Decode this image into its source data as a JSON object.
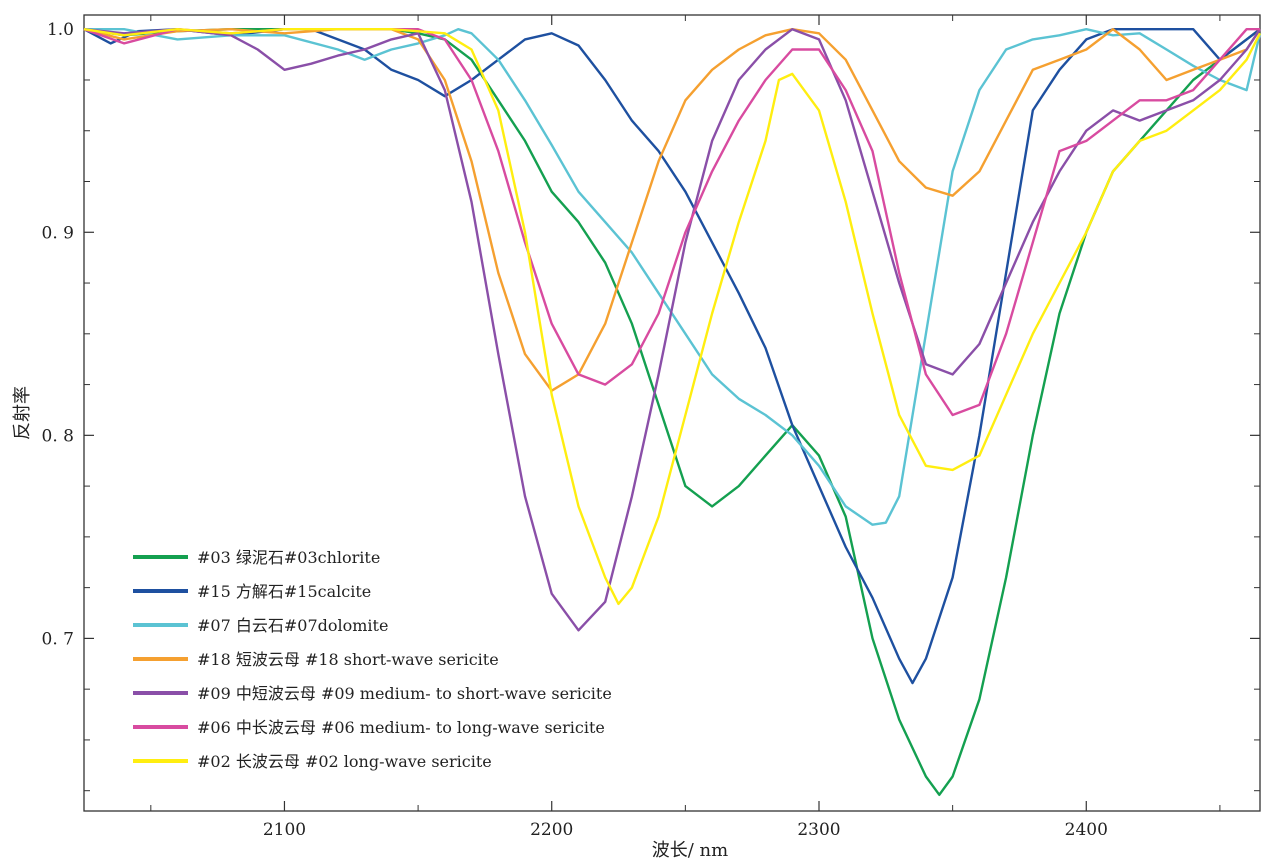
{
  "chart_data": {
    "type": "line",
    "xlabel": "波长/ nm",
    "ylabel": "反射率",
    "xlim": [
      2025,
      2465
    ],
    "ylim": [
      0.615,
      1.007
    ],
    "x_ticks": [
      {
        "value": 2100,
        "label": "2100"
      },
      {
        "value": 2200,
        "label": "2200"
      },
      {
        "value": 2300,
        "label": "2300"
      },
      {
        "value": 2400,
        "label": "2400"
      }
    ],
    "y_ticks": [
      {
        "value": 1.0,
        "label": "1.0"
      },
      {
        "value": 0.9,
        "label": "0. 9"
      },
      {
        "value": 0.8,
        "label": "0. 8"
      },
      {
        "value": 0.7,
        "label": "0. 7"
      }
    ],
    "legend_position": "bottom-left",
    "grid": false,
    "series": [
      {
        "name": "#03 绿泥石#03chlorite",
        "color": "#14a050",
        "x": [
          2025,
          2040,
          2060,
          2080,
          2100,
          2120,
          2140,
          2150,
          2160,
          2170,
          2180,
          2190,
          2200,
          2210,
          2220,
          2230,
          2240,
          2250,
          2260,
          2270,
          2280,
          2290,
          2300,
          2310,
          2320,
          2330,
          2340,
          2345,
          2350,
          2360,
          2370,
          2380,
          2390,
          2400,
          2410,
          2420,
          2430,
          2440,
          2450,
          2460,
          2465
        ],
        "y": [
          1.0,
          0.997,
          0.999,
          1.0,
          1.0,
          1.0,
          1.0,
          0.998,
          0.995,
          0.985,
          0.965,
          0.945,
          0.92,
          0.905,
          0.885,
          0.855,
          0.815,
          0.775,
          0.765,
          0.775,
          0.79,
          0.805,
          0.79,
          0.76,
          0.7,
          0.66,
          0.632,
          0.623,
          0.632,
          0.67,
          0.73,
          0.8,
          0.86,
          0.9,
          0.93,
          0.945,
          0.96,
          0.975,
          0.985,
          0.995,
          1.0
        ]
      },
      {
        "name": "#15 方解石#15calcite",
        "color": "#1e50a0",
        "x": [
          2025,
          2035,
          2045,
          2060,
          2080,
          2100,
          2110,
          2120,
          2130,
          2140,
          2150,
          2160,
          2170,
          2180,
          2190,
          2200,
          2210,
          2220,
          2230,
          2240,
          2250,
          2260,
          2270,
          2280,
          2290,
          2300,
          2310,
          2320,
          2330,
          2335,
          2340,
          2350,
          2360,
          2370,
          2380,
          2390,
          2400,
          2410,
          2420,
          2430,
          2435,
          2440,
          2450,
          2460,
          2465
        ],
        "y": [
          1.0,
          0.993,
          0.999,
          1.0,
          0.997,
          1.0,
          1.0,
          0.995,
          0.99,
          0.98,
          0.975,
          0.967,
          0.975,
          0.985,
          0.995,
          0.998,
          0.992,
          0.975,
          0.955,
          0.94,
          0.92,
          0.895,
          0.87,
          0.843,
          0.805,
          0.775,
          0.745,
          0.72,
          0.69,
          0.678,
          0.69,
          0.73,
          0.8,
          0.88,
          0.96,
          0.98,
          0.995,
          1.0,
          1.0,
          1.0,
          1.0,
          1.0,
          0.985,
          0.995,
          1.0
        ]
      },
      {
        "name": "#07 白云石#07dolomite",
        "color": "#5bc3d3",
        "x": [
          2025,
          2040,
          2060,
          2080,
          2100,
          2120,
          2130,
          2140,
          2150,
          2160,
          2165,
          2170,
          2180,
          2190,
          2200,
          2210,
          2220,
          2230,
          2240,
          2250,
          2260,
          2270,
          2280,
          2290,
          2300,
          2310,
          2320,
          2325,
          2330,
          2340,
          2350,
          2360,
          2370,
          2380,
          2390,
          2400,
          2410,
          2420,
          2430,
          2440,
          2450,
          2460,
          2465
        ],
        "y": [
          1.0,
          1.0,
          0.995,
          0.997,
          0.997,
          0.99,
          0.985,
          0.99,
          0.993,
          0.997,
          1.0,
          0.998,
          0.985,
          0.965,
          0.943,
          0.92,
          0.905,
          0.89,
          0.87,
          0.85,
          0.83,
          0.818,
          0.81,
          0.8,
          0.785,
          0.765,
          0.756,
          0.757,
          0.77,
          0.85,
          0.93,
          0.97,
          0.99,
          0.995,
          0.997,
          1.0,
          0.997,
          0.998,
          0.99,
          0.982,
          0.975,
          0.97,
          0.998
        ]
      },
      {
        "name": "#18 短波云母 #18 short-wave sericite",
        "color": "#f5a030",
        "x": [
          2025,
          2040,
          2060,
          2080,
          2100,
          2120,
          2140,
          2150,
          2160,
          2170,
          2180,
          2190,
          2200,
          2210,
          2220,
          2230,
          2240,
          2250,
          2260,
          2270,
          2280,
          2290,
          2300,
          2310,
          2320,
          2330,
          2340,
          2350,
          2360,
          2370,
          2380,
          2390,
          2400,
          2410,
          2420,
          2430,
          2440,
          2450,
          2460,
          2465
        ],
        "y": [
          1.0,
          0.995,
          0.999,
          1.0,
          0.998,
          1.0,
          1.0,
          0.995,
          0.975,
          0.935,
          0.88,
          0.84,
          0.822,
          0.83,
          0.855,
          0.895,
          0.935,
          0.965,
          0.98,
          0.99,
          0.997,
          1.0,
          0.998,
          0.985,
          0.96,
          0.935,
          0.922,
          0.918,
          0.93,
          0.955,
          0.98,
          0.985,
          0.99,
          1.0,
          0.99,
          0.975,
          0.98,
          0.985,
          0.99,
          1.0
        ]
      },
      {
        "name": "#09 中短波云母 #09  medium- to short-wave sericite",
        "color": "#8a4fa8",
        "x": [
          2025,
          2040,
          2060,
          2080,
          2090,
          2100,
          2110,
          2120,
          2130,
          2140,
          2150,
          2160,
          2170,
          2180,
          2190,
          2200,
          2210,
          2220,
          2230,
          2240,
          2250,
          2260,
          2270,
          2280,
          2290,
          2300,
          2310,
          2320,
          2330,
          2340,
          2350,
          2360,
          2370,
          2380,
          2390,
          2400,
          2410,
          2420,
          2430,
          2440,
          2450,
          2460,
          2465
        ],
        "y": [
          1.0,
          0.998,
          1.0,
          0.997,
          0.99,
          0.98,
          0.983,
          0.987,
          0.99,
          0.995,
          0.998,
          0.97,
          0.915,
          0.84,
          0.77,
          0.722,
          0.704,
          0.718,
          0.77,
          0.83,
          0.895,
          0.945,
          0.975,
          0.99,
          1.0,
          0.995,
          0.965,
          0.92,
          0.875,
          0.835,
          0.83,
          0.845,
          0.875,
          0.905,
          0.93,
          0.95,
          0.96,
          0.955,
          0.96,
          0.965,
          0.975,
          0.99,
          1.0
        ]
      },
      {
        "name": "#06 中长波云母 #06  medium- to long-wave sericite",
        "color": "#d84ba0",
        "x": [
          2025,
          2040,
          2060,
          2080,
          2100,
          2120,
          2140,
          2150,
          2160,
          2170,
          2180,
          2190,
          2200,
          2210,
          2220,
          2230,
          2240,
          2250,
          2260,
          2270,
          2280,
          2290,
          2300,
          2310,
          2320,
          2330,
          2340,
          2350,
          2360,
          2370,
          2380,
          2390,
          2400,
          2410,
          2420,
          2430,
          2440,
          2450,
          2460,
          2465
        ],
        "y": [
          1.0,
          0.993,
          1.0,
          0.998,
          1.0,
          1.0,
          1.0,
          1.0,
          0.995,
          0.975,
          0.94,
          0.895,
          0.855,
          0.83,
          0.825,
          0.835,
          0.86,
          0.9,
          0.93,
          0.955,
          0.975,
          0.99,
          0.99,
          0.97,
          0.94,
          0.88,
          0.83,
          0.81,
          0.815,
          0.85,
          0.895,
          0.94,
          0.945,
          0.955,
          0.965,
          0.965,
          0.97,
          0.985,
          1.0,
          1.0
        ]
      },
      {
        "name": "#02 长波云母 #02 long-wave sericite",
        "color": "#ffee10",
        "x": [
          2025,
          2040,
          2060,
          2080,
          2100,
          2120,
          2140,
          2160,
          2170,
          2180,
          2190,
          2200,
          2210,
          2220,
          2225,
          2230,
          2240,
          2250,
          2260,
          2270,
          2280,
          2285,
          2290,
          2300,
          2310,
          2320,
          2330,
          2340,
          2350,
          2360,
          2370,
          2380,
          2390,
          2400,
          2410,
          2420,
          2430,
          2440,
          2450,
          2460,
          2465
        ],
        "y": [
          1.0,
          0.997,
          1.0,
          0.998,
          1.0,
          1.0,
          1.0,
          0.998,
          0.99,
          0.96,
          0.9,
          0.82,
          0.765,
          0.73,
          0.717,
          0.725,
          0.76,
          0.81,
          0.86,
          0.905,
          0.945,
          0.975,
          0.978,
          0.96,
          0.915,
          0.86,
          0.81,
          0.785,
          0.783,
          0.79,
          0.82,
          0.85,
          0.875,
          0.9,
          0.93,
          0.945,
          0.95,
          0.96,
          0.97,
          0.985,
          0.998
        ]
      }
    ]
  }
}
